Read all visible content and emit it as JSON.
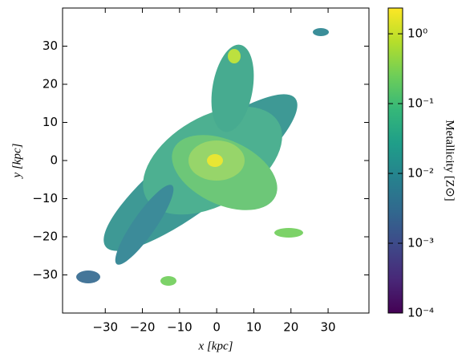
{
  "chart_data": {
    "type": "image",
    "xlabel": "x [kpc]",
    "ylabel": "y [kpc]",
    "xlim": [
      -41.5,
      41
    ],
    "ylim": [
      -40,
      40
    ],
    "xticks": [
      {
        "value": -30,
        "label": "−30"
      },
      {
        "value": -20,
        "label": "−20"
      },
      {
        "value": -10,
        "label": "−10"
      },
      0,
      10,
      20,
      30
    ],
    "yticks": [
      {
        "value": -30,
        "label": "−30"
      },
      {
        "value": -20,
        "label": "−20"
      },
      {
        "value": -10,
        "label": "−10"
      },
      0,
      10,
      20,
      30
    ],
    "colorbar": {
      "label": "Metallicity [Z⊙]",
      "colormap": "viridis",
      "log": true,
      "clim": [
        0.0001,
        2.34
      ],
      "ticks": [
        {
          "value": 0.0001,
          "label": "10⁻⁴"
        },
        {
          "value": 0.001,
          "label": "10⁻³"
        },
        {
          "value": 0.01,
          "label": "10⁻²"
        },
        {
          "value": 0.1,
          "label": "10⁻¹"
        },
        {
          "value": 1,
          "label": "10⁰"
        }
      ]
    }
  }
}
